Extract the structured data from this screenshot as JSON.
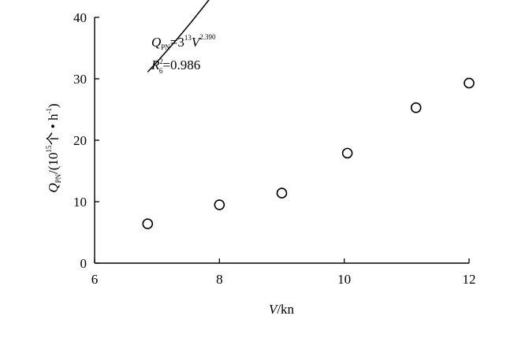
{
  "chart_data": {
    "type": "scatter",
    "xlabel": {
      "var": "V",
      "unit": "/kn"
    },
    "ylabel": {
      "q": "Q",
      "sub": "PN",
      "middle": "/(10",
      "exp1": "15",
      "unit": "个 • h",
      "exp2": "-1",
      "close": ")"
    },
    "xlim": [
      6,
      12
    ],
    "ylim": [
      0,
      40
    ],
    "xticks": [
      "6",
      "8",
      "10",
      "12"
    ],
    "yticks": [
      "0",
      "10",
      "20",
      "30",
      "40"
    ],
    "points": [
      {
        "x": 6.85,
        "y": 6.4
      },
      {
        "x": 8.0,
        "y": 9.5
      },
      {
        "x": 9.0,
        "y": 11.4
      },
      {
        "x": 10.05,
        "y": 17.9
      },
      {
        "x": 11.15,
        "y": 25.3
      },
      {
        "x": 12.0,
        "y": 29.3
      }
    ],
    "fit": {
      "coef": 0.313,
      "exponent": 2.39,
      "x_start": 6.85,
      "x_end": 12.0
    },
    "equation": {
      "lhs": "Q",
      "lhs_sub": "PN",
      "eq": "=3",
      "coef_sup": "13",
      "var": "V",
      "exp_sup": "2.390"
    },
    "r2": {
      "r": "R",
      "sup": "2",
      "sub": "6",
      "value": "=0.986"
    },
    "grid": false,
    "legend": "none"
  }
}
